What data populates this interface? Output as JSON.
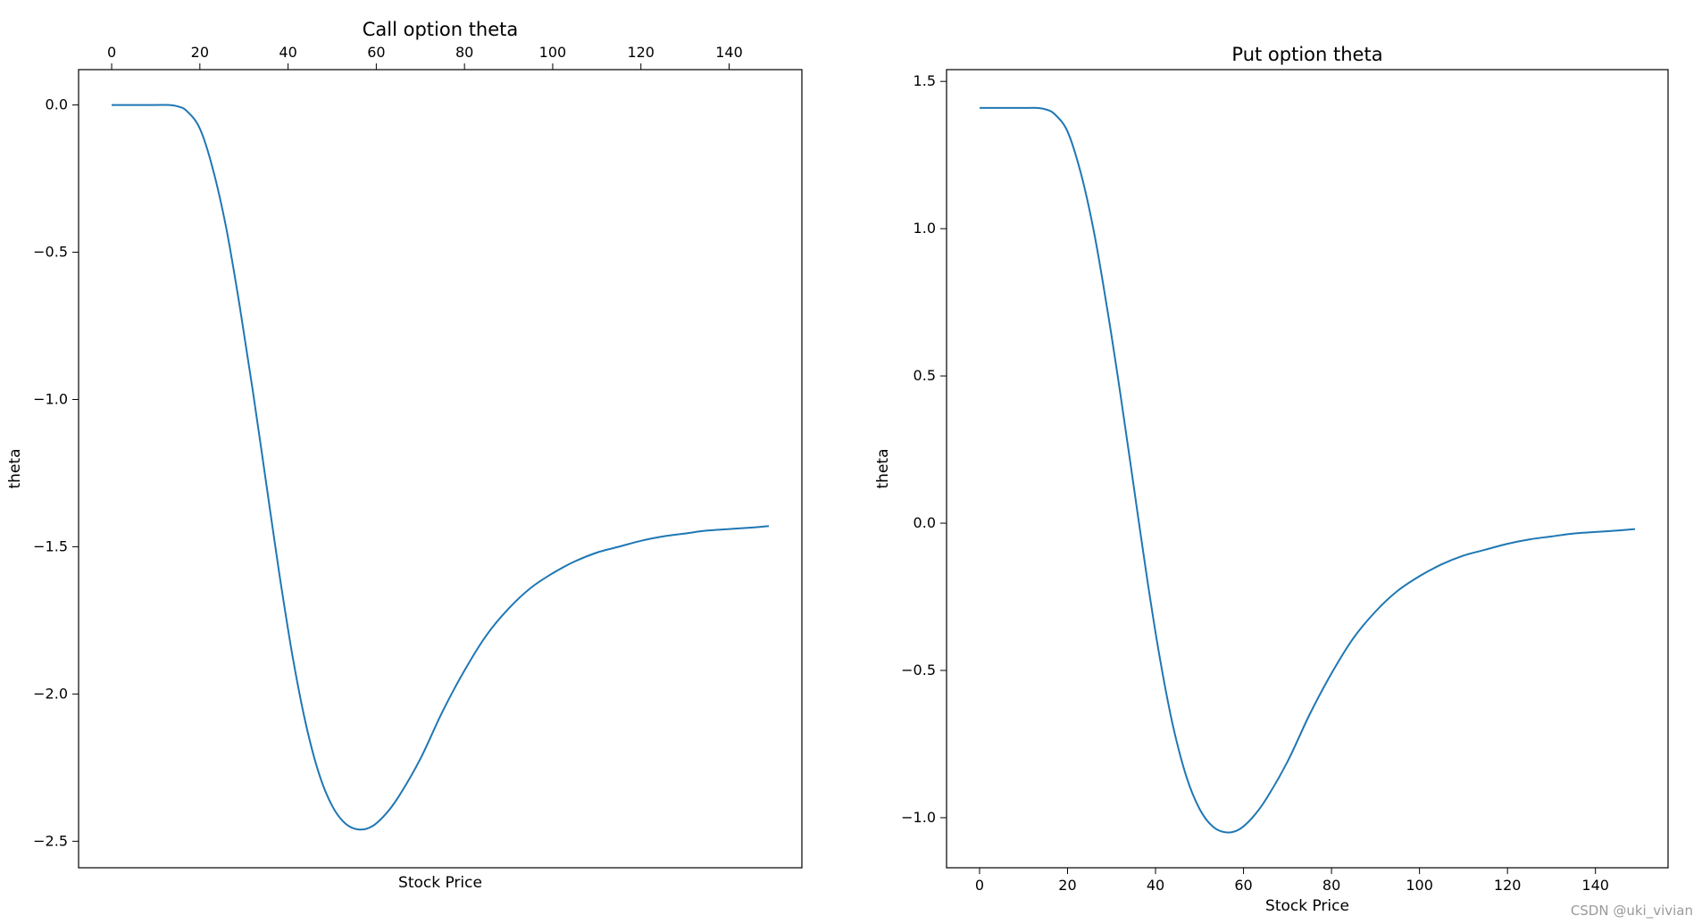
{
  "chart_data": [
    {
      "type": "line",
      "title": "Call option theta",
      "xlabel": "Stock Price",
      "ylabel": "theta",
      "xaxis_position": "top",
      "xlim": [
        -7.5,
        156.5
      ],
      "ylim": [
        -2.59,
        0.12
      ],
      "x_ticks": [
        0,
        20,
        40,
        60,
        80,
        100,
        120,
        140
      ],
      "y_ticks": [
        0.0,
        -0.5,
        -1.0,
        -1.5,
        -2.0,
        -2.5
      ],
      "y_tick_labels": [
        "0.0",
        "−0.5",
        "−1.0",
        "−1.5",
        "−2.0",
        "−2.5"
      ],
      "color": "#1f77b4",
      "series": [
        {
          "x": [
            0,
            5,
            10,
            13,
            15,
            17,
            20,
            23,
            26,
            29,
            32,
            35,
            38,
            41,
            44,
            47,
            50,
            53,
            56,
            59,
            62,
            65,
            70,
            75,
            80,
            85,
            90,
            95,
            100,
            105,
            110,
            115,
            120,
            125,
            130,
            135,
            140,
            145,
            149
          ],
          "y": [
            0.0,
            0.0,
            0.0,
            0.0,
            -0.005,
            -0.02,
            -0.08,
            -0.22,
            -0.42,
            -0.68,
            -0.97,
            -1.28,
            -1.59,
            -1.87,
            -2.1,
            -2.27,
            -2.38,
            -2.44,
            -2.46,
            -2.45,
            -2.41,
            -2.35,
            -2.22,
            -2.06,
            -1.92,
            -1.8,
            -1.71,
            -1.64,
            -1.59,
            -1.55,
            -1.52,
            -1.5,
            -1.48,
            -1.465,
            -1.455,
            -1.445,
            -1.44,
            -1.435,
            -1.43
          ]
        }
      ]
    },
    {
      "type": "line",
      "title": "Put option theta",
      "xlabel": "Stock Price",
      "ylabel": "theta",
      "xaxis_position": "bottom",
      "xlim": [
        -7.5,
        156.5
      ],
      "ylim": [
        -1.17,
        1.54
      ],
      "x_ticks": [
        0,
        20,
        40,
        60,
        80,
        100,
        120,
        140
      ],
      "y_ticks": [
        1.5,
        1.0,
        0.5,
        0.0,
        -0.5,
        -1.0
      ],
      "y_tick_labels": [
        "1.5",
        "1.0",
        "0.5",
        "0.0",
        "−0.5",
        "−1.0"
      ],
      "color": "#1f77b4",
      "series": [
        {
          "x": [
            0,
            5,
            10,
            13,
            15,
            17,
            20,
            23,
            26,
            29,
            32,
            35,
            38,
            41,
            44,
            47,
            50,
            53,
            56,
            59,
            62,
            65,
            70,
            75,
            80,
            85,
            90,
            95,
            100,
            105,
            110,
            115,
            120,
            125,
            130,
            135,
            140,
            145,
            149
          ],
          "y": [
            1.41,
            1.41,
            1.41,
            1.41,
            1.405,
            1.39,
            1.33,
            1.19,
            0.99,
            0.73,
            0.44,
            0.13,
            -0.18,
            -0.46,
            -0.69,
            -0.86,
            -0.97,
            -1.03,
            -1.05,
            -1.04,
            -1.0,
            -0.94,
            -0.81,
            -0.65,
            -0.51,
            -0.39,
            -0.3,
            -0.23,
            -0.18,
            -0.14,
            -0.11,
            -0.09,
            -0.07,
            -0.055,
            -0.045,
            -0.035,
            -0.03,
            -0.025,
            -0.02
          ]
        }
      ]
    }
  ],
  "watermark": "CSDN @uki_vivian"
}
